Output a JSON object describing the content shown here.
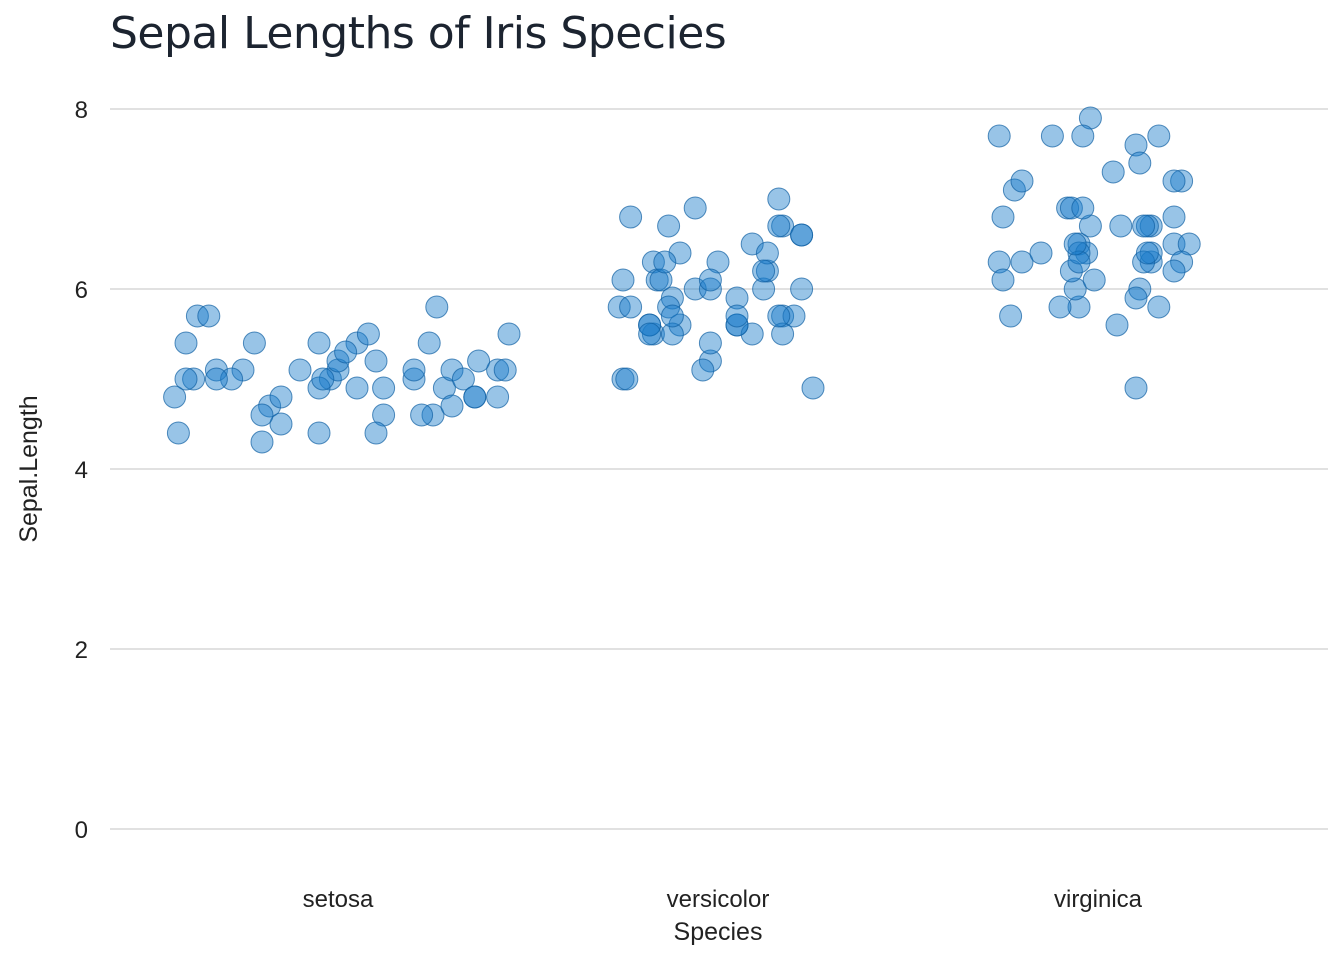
{
  "chart_data": {
    "type": "scatter",
    "title": "Sepal Lengths of Iris Species",
    "xlabel": "Species",
    "ylabel": "Sepal.Length",
    "categories": [
      "setosa",
      "versicolor",
      "virginica"
    ],
    "ylim": [
      0,
      8.2
    ],
    "yticks": [
      0,
      2,
      4,
      6,
      8
    ],
    "grid": true,
    "legend": "none",
    "point_color": "#1a7cc9",
    "point_stroke": "#0f5fa3",
    "point_opacity": 0.45,
    "series": [
      {
        "category": "setosa",
        "values": [
          5.1,
          4.9,
          4.7,
          4.6,
          5.0,
          5.4,
          4.6,
          5.0,
          4.4,
          4.9,
          5.4,
          4.8,
          4.8,
          4.3,
          5.8,
          5.7,
          5.4,
          5.1,
          5.7,
          5.1,
          5.4,
          5.1,
          4.6,
          5.1,
          4.8,
          5.0,
          5.0,
          5.2,
          5.2,
          4.7,
          4.8,
          5.4,
          5.2,
          5.5,
          4.9,
          5.0,
          5.5,
          4.9,
          4.4,
          5.1,
          5.0,
          4.5,
          4.4,
          5.0,
          5.1,
          4.8,
          5.1,
          4.6,
          5.3,
          5.0
        ],
        "jitter": [
          -0.32,
          0.05,
          -0.18,
          0.25,
          -0.38,
          -0.22,
          0.12,
          -0.02,
          -0.42,
          0.28,
          -0.05,
          -0.43,
          0.36,
          -0.2,
          0.26,
          -0.37,
          0.24,
          0.0,
          -0.34,
          0.3,
          0.05,
          -0.25,
          0.22,
          0.42,
          -0.15,
          -0.4,
          0.33,
          0.1,
          0.37,
          0.3,
          0.42,
          -0.4,
          0.0,
          0.08,
          -0.05,
          -0.28,
          0.45,
          0.12,
          -0.05,
          0.44,
          -0.32,
          -0.15,
          0.1,
          0.2,
          -0.1,
          0.36,
          0.2,
          -0.2,
          0.02,
          -0.04
        ]
      },
      {
        "category": "versicolor",
        "values": [
          7.0,
          6.4,
          6.9,
          5.5,
          6.5,
          5.7,
          6.3,
          4.9,
          6.6,
          5.2,
          5.0,
          5.9,
          6.0,
          6.1,
          5.6,
          6.7,
          5.6,
          5.8,
          6.2,
          5.6,
          5.9,
          6.1,
          6.3,
          6.1,
          6.4,
          6.6,
          6.8,
          6.7,
          6.0,
          5.7,
          5.5,
          5.5,
          5.8,
          6.0,
          5.4,
          6.0,
          6.7,
          6.3,
          5.6,
          5.5,
          5.5,
          6.1,
          5.8,
          5.0,
          5.6,
          5.7,
          5.7,
          6.2,
          5.1,
          5.7
        ],
        "jitter": [
          0.16,
          -0.1,
          -0.06,
          -0.17,
          0.09,
          0.17,
          -0.17,
          0.25,
          0.22,
          -0.02,
          -0.25,
          -0.12,
          0.12,
          -0.16,
          -0.18,
          -0.13,
          0.05,
          -0.13,
          0.13,
          -0.18,
          0.05,
          -0.15,
          0.0,
          -0.25,
          0.13,
          0.22,
          -0.23,
          0.17,
          -0.06,
          0.2,
          -0.18,
          0.17,
          -0.26,
          0.22,
          -0.02,
          -0.02,
          0.16,
          -0.14,
          -0.1,
          0.09,
          -0.12,
          -0.02,
          -0.23,
          -0.24,
          0.05,
          0.16,
          0.05,
          0.12,
          -0.04,
          -0.12
        ]
      },
      {
        "category": "virginica",
        "values": [
          6.3,
          5.8,
          7.1,
          6.3,
          6.5,
          7.6,
          4.9,
          7.3,
          6.7,
          7.2,
          6.5,
          6.4,
          6.8,
          5.7,
          5.8,
          6.4,
          6.5,
          7.7,
          7.7,
          6.0,
          6.9,
          5.6,
          7.7,
          6.3,
          6.7,
          7.2,
          6.2,
          6.1,
          6.4,
          7.2,
          7.4,
          7.9,
          6.4,
          6.3,
          6.1,
          7.7,
          6.3,
          6.4,
          6.0,
          6.9,
          6.7,
          6.9,
          5.8,
          6.8,
          6.7,
          6.7,
          6.3,
          6.5,
          6.2,
          5.9
        ],
        "jitter": [
          -0.2,
          -0.05,
          -0.22,
          0.14,
          0.2,
          0.1,
          0.1,
          0.04,
          0.14,
          0.22,
          -0.05,
          0.14,
          -0.25,
          -0.23,
          0.16,
          -0.15,
          0.24,
          -0.26,
          -0.12,
          -0.06,
          -0.08,
          0.05,
          0.16,
          -0.26,
          0.06,
          -0.2,
          -0.07,
          -0.25,
          -0.03,
          0.2,
          0.11,
          -0.02,
          -0.05,
          0.12,
          -0.01,
          -0.04,
          0.22,
          0.13,
          0.11,
          -0.07,
          -0.02,
          -0.04,
          -0.1,
          0.2,
          0.13,
          0.12,
          -0.05,
          -0.06,
          0.2,
          0.1
        ]
      }
    ]
  }
}
